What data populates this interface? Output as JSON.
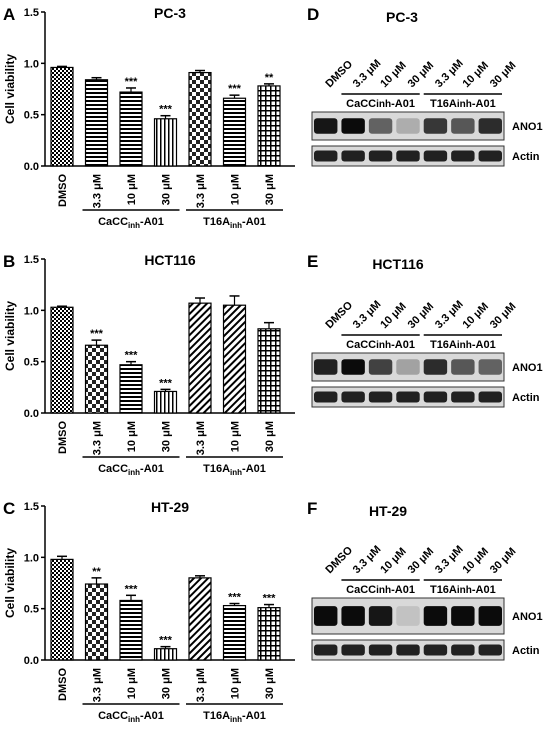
{
  "panels": [
    {
      "letter": "A",
      "title": "PC-3"
    },
    {
      "letter": "B",
      "title": "HCT116"
    },
    {
      "letter": "C",
      "title": "HT-29"
    }
  ],
  "blots": [
    {
      "letter": "D",
      "title": "PC-3"
    },
    {
      "letter": "E",
      "title": "HCT116"
    },
    {
      "letter": "F",
      "title": "HT-29"
    }
  ],
  "shared": {
    "ylabel": "Cell viability",
    "yticks": [
      "0.0",
      "0.5",
      "1.0",
      "1.5"
    ],
    "group1": {
      "main": "CaCC",
      "sub": "inh",
      "suffix": "-A01"
    },
    "group2": {
      "main": "T16A",
      "sub": "inh",
      "suffix": "-A01"
    },
    "blot_conditions": [
      "DMSO",
      "3.3 μM",
      "10 μM",
      "30 μM",
      "3.3 μM",
      "10 μM",
      "30 μM"
    ],
    "blot_rows": [
      "ANO1",
      "Actin"
    ]
  },
  "chart_data": [
    {
      "type": "bar",
      "title": "PC-3",
      "ylabel": "Cell viability",
      "ylim": [
        0,
        1.5
      ],
      "categories": [
        "DMSO",
        "3.3 μM",
        "10 μM",
        "30 μM",
        "3.3 μM",
        "10 μM",
        "30 μM"
      ],
      "values": [
        0.96,
        0.84,
        0.72,
        0.46,
        0.91,
        0.66,
        0.78
      ],
      "errors": [
        0.01,
        0.02,
        0.04,
        0.03,
        0.02,
        0.03,
        0.02
      ],
      "significance": [
        "",
        "",
        "***",
        "***",
        "",
        "***",
        "**"
      ]
    },
    {
      "type": "bar",
      "title": "HCT116",
      "ylabel": "Cell viability",
      "ylim": [
        0,
        1.5
      ],
      "categories": [
        "DMSO",
        "3.3 μM",
        "10 μM",
        "30 μM",
        "3.3 μM",
        "10 μM",
        "30 μM"
      ],
      "values": [
        1.03,
        0.66,
        0.47,
        0.21,
        1.07,
        1.05,
        0.82
      ],
      "errors": [
        0.01,
        0.05,
        0.03,
        0.02,
        0.05,
        0.09,
        0.06
      ],
      "significance": [
        "",
        "***",
        "***",
        "***",
        "",
        "",
        ""
      ]
    },
    {
      "type": "bar",
      "title": "HT-29",
      "ylabel": "Cell viability",
      "ylim": [
        0,
        1.5
      ],
      "categories": [
        "DMSO",
        "3.3 μM",
        "10 μM",
        "30 μM",
        "3.3 μM",
        "10 μM",
        "30 μM"
      ],
      "values": [
        0.98,
        0.74,
        0.58,
        0.11,
        0.8,
        0.53,
        0.51
      ],
      "errors": [
        0.03,
        0.06,
        0.05,
        0.02,
        0.02,
        0.02,
        0.03
      ],
      "significance": [
        "",
        "**",
        "***",
        "***",
        "",
        "***",
        "***"
      ]
    }
  ],
  "blot_data": [
    {
      "ANO1": [
        0.9,
        0.95,
        0.55,
        0.2,
        0.75,
        0.6,
        0.8
      ],
      "Actin": [
        0.85,
        0.85,
        0.85,
        0.85,
        0.85,
        0.85,
        0.85
      ]
    },
    {
      "ANO1": [
        0.85,
        0.95,
        0.7,
        0.25,
        0.8,
        0.6,
        0.55
      ],
      "Actin": [
        0.85,
        0.85,
        0.85,
        0.85,
        0.85,
        0.85,
        0.85
      ]
    },
    {
      "ANO1": [
        0.95,
        0.95,
        0.9,
        0.1,
        0.95,
        0.95,
        0.95
      ],
      "Actin": [
        0.85,
        0.85,
        0.85,
        0.85,
        0.85,
        0.85,
        0.85
      ]
    }
  ]
}
